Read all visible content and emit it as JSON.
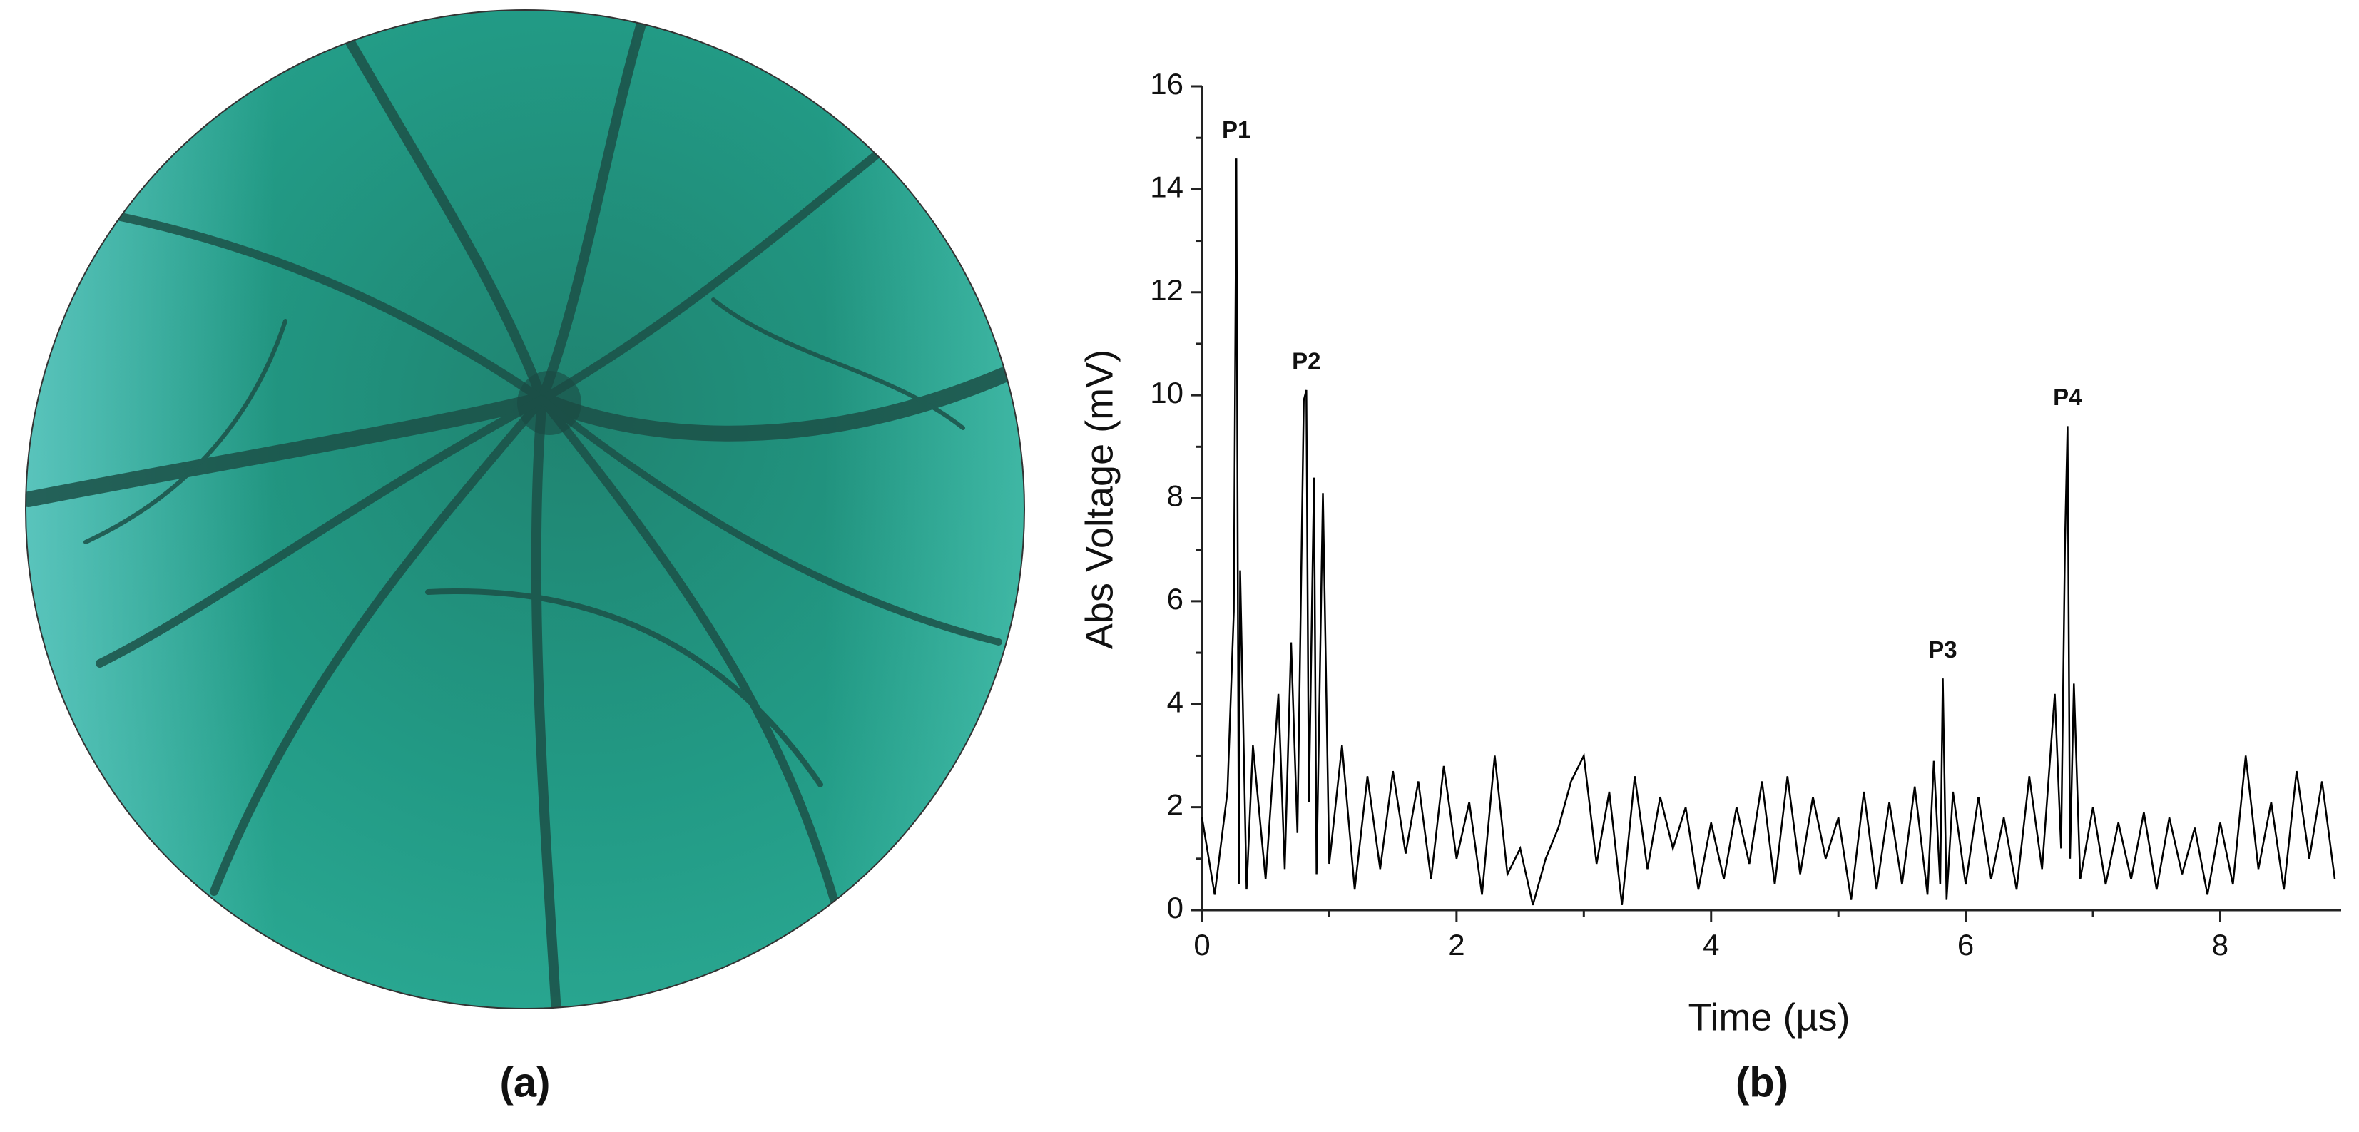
{
  "figure": {
    "panel_labels": [
      "(a)",
      "(b)"
    ]
  },
  "chart_data": {
    "type": "line",
    "color": "#000000",
    "xlabel": "Time (µs)",
    "ylabel": "Abs Voltage (mV)",
    "xlim": [
      0,
      8.95
    ],
    "ylim": [
      0,
      16
    ],
    "xticks": [
      0,
      2,
      4,
      6,
      8
    ],
    "yticks": [
      0,
      2,
      4,
      6,
      8,
      10,
      12,
      14,
      16
    ],
    "xminorticks": [
      1,
      3,
      5,
      7
    ],
    "yminorticks": [
      1,
      3,
      5,
      7,
      9,
      11,
      13,
      15
    ],
    "x": [
      0,
      0.1,
      0.2,
      0.25,
      0.27,
      0.29,
      0.3,
      0.35,
      0.4,
      0.5,
      0.6,
      0.65,
      0.7,
      0.75,
      0.8,
      0.82,
      0.84,
      0.88,
      0.9,
      0.95,
      1.0,
      1.1,
      1.2,
      1.3,
      1.4,
      1.5,
      1.6,
      1.7,
      1.8,
      1.9,
      2.0,
      2.1,
      2.2,
      2.3,
      2.4,
      2.5,
      2.6,
      2.7,
      2.8,
      2.9,
      3.0,
      3.1,
      3.2,
      3.3,
      3.4,
      3.5,
      3.6,
      3.7,
      3.8,
      3.9,
      4.0,
      4.1,
      4.2,
      4.3,
      4.4,
      4.5,
      4.6,
      4.7,
      4.8,
      4.9,
      5.0,
      5.1,
      5.2,
      5.3,
      5.4,
      5.5,
      5.6,
      5.7,
      5.75,
      5.8,
      5.82,
      5.85,
      5.9,
      6.0,
      6.1,
      6.2,
      6.3,
      6.4,
      6.5,
      6.6,
      6.7,
      6.75,
      6.78,
      6.8,
      6.82,
      6.85,
      6.9,
      7.0,
      7.1,
      7.2,
      7.3,
      7.4,
      7.5,
      7.6,
      7.7,
      7.8,
      7.9,
      8.0,
      8.1,
      8.2,
      8.3,
      8.4,
      8.5,
      8.6,
      8.7,
      8.8,
      8.9
    ],
    "values": [
      1.8,
      0.3,
      2.3,
      5.8,
      14.6,
      0.5,
      6.6,
      0.4,
      3.2,
      0.6,
      4.2,
      0.8,
      5.2,
      1.5,
      9.9,
      10.1,
      2.1,
      8.4,
      0.7,
      8.1,
      0.9,
      3.2,
      0.4,
      2.6,
      0.8,
      2.7,
      1.1,
      2.5,
      0.6,
      2.8,
      1.0,
      2.1,
      0.3,
      3.0,
      0.7,
      1.2,
      0.1,
      1.0,
      1.6,
      2.5,
      3.0,
      0.9,
      2.3,
      0.1,
      2.6,
      0.8,
      2.2,
      1.2,
      2.0,
      0.4,
      1.7,
      0.6,
      2.0,
      0.9,
      2.5,
      0.5,
      2.6,
      0.7,
      2.2,
      1.0,
      1.8,
      0.2,
      2.3,
      0.4,
      2.1,
      0.5,
      2.4,
      0.3,
      2.9,
      0.5,
      4.5,
      0.2,
      2.3,
      0.5,
      2.2,
      0.6,
      1.8,
      0.4,
      2.6,
      0.8,
      4.2,
      1.2,
      7.1,
      9.4,
      1.0,
      4.4,
      0.6,
      2.0,
      0.5,
      1.7,
      0.6,
      1.9,
      0.4,
      1.8,
      0.7,
      1.6,
      0.3,
      1.7,
      0.5,
      3.0,
      0.8,
      2.1,
      0.4,
      2.7,
      1.0,
      2.5,
      0.6
    ],
    "annotations": [
      {
        "text": "P1",
        "x": 0.27,
        "y": 14.6
      },
      {
        "text": "P2",
        "x": 0.82,
        "y": 10.1
      },
      {
        "text": "P3",
        "x": 5.82,
        "y": 4.5
      },
      {
        "text": "P4",
        "x": 6.8,
        "y": 9.4
      }
    ]
  }
}
